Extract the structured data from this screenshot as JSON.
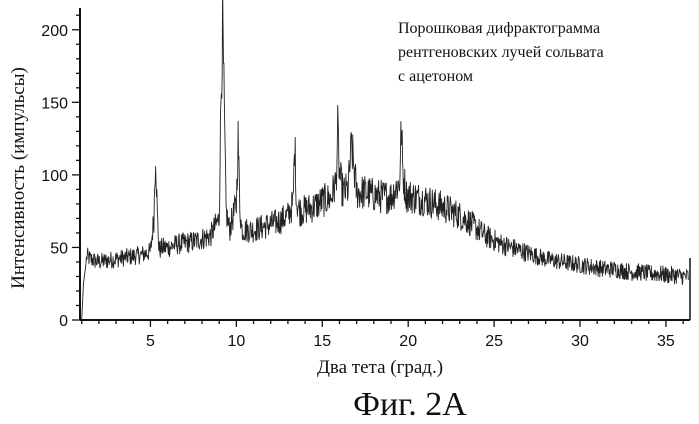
{
  "chart_data": {
    "type": "line",
    "xlabel": "Два тета (град.)",
    "ylabel": "Интенсивность (импульсы)",
    "xlim": [
      0.9,
      36.4
    ],
    "ylim": [
      0,
      215
    ],
    "x_ticks": [
      5,
      10,
      15,
      20,
      25,
      30,
      35
    ],
    "y_ticks": [
      0,
      50,
      100,
      150,
      200
    ],
    "grid": false,
    "annotation": [
      "Порошковая дифрактограмма",
      "рентгеновских лучей сольвата",
      "с ацетоном"
    ],
    "caption": "Фиг. 2А",
    "series": [
      {
        "x": [
          1.0,
          1.1,
          1.3,
          1.5,
          2.0,
          2.5,
          3.0,
          3.5,
          4.0,
          4.5,
          5.0,
          5.2,
          5.3,
          5.4,
          5.5,
          5.7,
          6.0,
          6.5,
          7.0,
          7.5,
          8.0,
          8.5,
          9.0,
          9.1,
          9.2,
          9.3,
          9.4,
          9.6,
          10.0,
          10.1,
          10.2,
          10.3,
          10.5,
          11.0,
          11.5,
          12.0,
          12.5,
          13.0,
          13.3,
          13.4,
          13.5,
          13.7,
          14.0,
          14.5,
          15.0,
          15.5,
          15.8,
          15.9,
          16.0,
          16.2,
          16.5,
          16.7,
          16.8,
          17.0,
          17.5,
          18.0,
          18.5,
          19.0,
          19.5,
          19.6,
          19.7,
          19.9,
          20.5,
          21.0,
          21.5,
          22.0,
          22.5,
          23.0,
          23.5,
          24.0,
          24.5,
          25.0,
          25.5,
          26.0,
          26.5,
          27.0,
          27.5,
          28.0,
          28.5,
          29.0,
          29.5,
          30.0,
          30.5,
          31.0,
          31.5,
          32.0,
          32.5,
          33.0,
          33.5,
          34.0,
          34.5,
          35.0,
          35.5,
          36.0,
          36.3
        ],
        "values": [
          0,
          25,
          44,
          42,
          40,
          41,
          42,
          43,
          44,
          45,
          47,
          70,
          118,
          72,
          48,
          50,
          50,
          52,
          53,
          54,
          56,
          58,
          70,
          150,
          205,
          140,
          75,
          62,
          80,
          125,
          80,
          63,
          62,
          62,
          64,
          66,
          68,
          72,
          80,
          122,
          82,
          75,
          76,
          78,
          82,
          84,
          95,
          130,
          100,
          88,
          90,
          120,
          110,
          88,
          88,
          86,
          85,
          85,
          95,
          133,
          100,
          86,
          84,
          83,
          80,
          78,
          75,
          72,
          68,
          63,
          58,
          55,
          52,
          50,
          48,
          46,
          44,
          42,
          41,
          40,
          39,
          38,
          37,
          36,
          35,
          35,
          34,
          33,
          33,
          32,
          32,
          31,
          31,
          30,
          30
        ]
      }
    ]
  }
}
